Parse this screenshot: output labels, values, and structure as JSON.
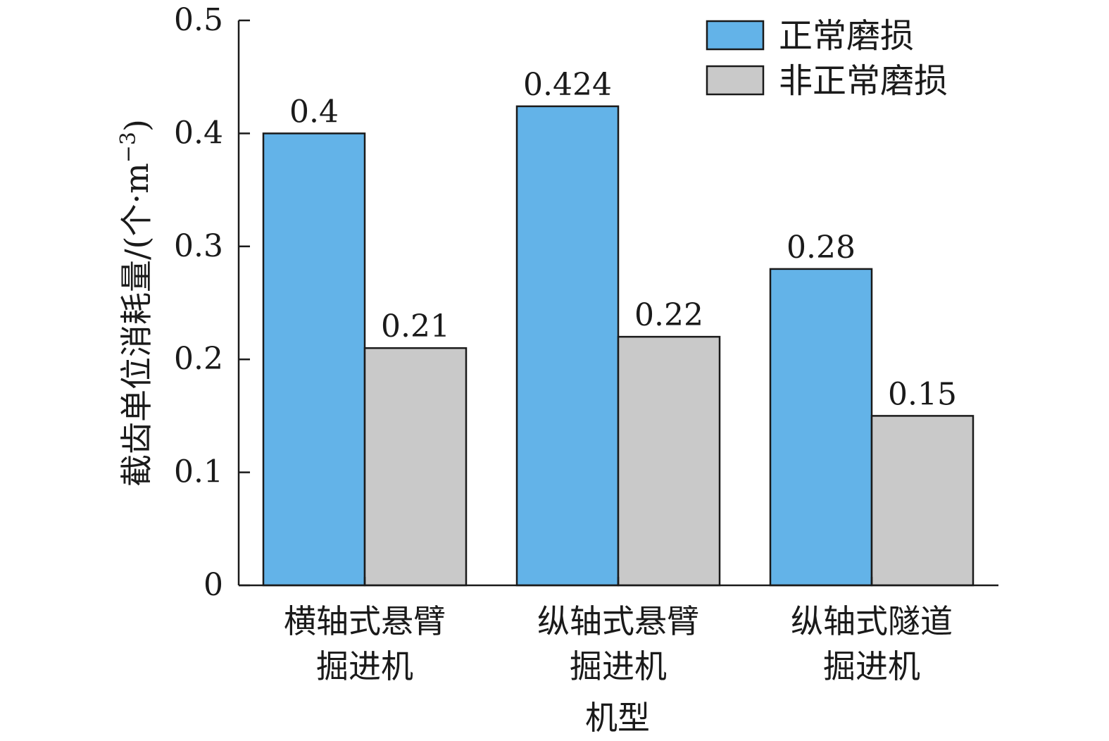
{
  "chart_data": {
    "type": "bar",
    "title": "",
    "xlabel": "机型",
    "ylabel": "截齿单位消耗量/(个·m",
    "ylabel_sup": "−3",
    "ylabel_close": ")",
    "ylim": [
      0,
      0.5
    ],
    "yticks": [
      0,
      0.1,
      0.2,
      0.3,
      0.4,
      0.5
    ],
    "ytick_labels": [
      "0",
      "0.1",
      "0.2",
      "0.3",
      "0.4",
      "0.5"
    ],
    "categories": [
      {
        "line1": "横轴式悬臂",
        "line2": "掘进机"
      },
      {
        "line1": "纵轴式悬臂",
        "line2": "掘进机"
      },
      {
        "line1": "纵轴式隧道",
        "line2": "掘进机"
      }
    ],
    "series": [
      {
        "name": "正常磨损",
        "color": "#63b3e8",
        "values": [
          0.4,
          0.424,
          0.28
        ],
        "labels": [
          "0.4",
          "0.424",
          "0.28"
        ]
      },
      {
        "name": "非正常磨损",
        "color": "#c9c9c9",
        "values": [
          0.21,
          0.22,
          0.15
        ],
        "labels": [
          "0.21",
          "0.22",
          "0.15"
        ]
      }
    ],
    "grid": false,
    "legend_position": "top-right"
  }
}
